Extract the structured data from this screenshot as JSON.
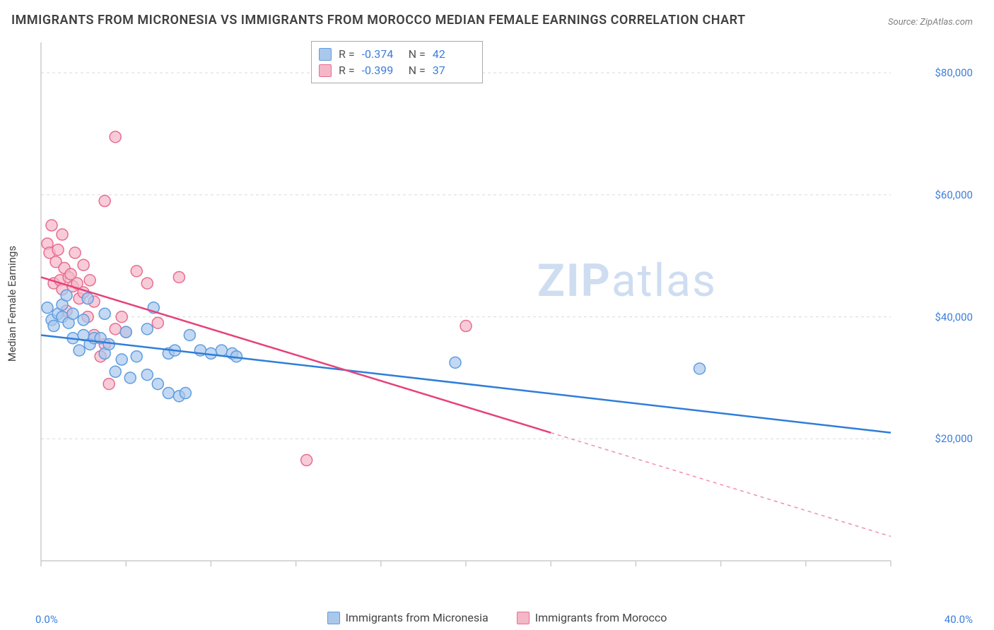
{
  "title": "IMMIGRANTS FROM MICRONESIA VS IMMIGRANTS FROM MOROCCO MEDIAN FEMALE EARNINGS CORRELATION CHART",
  "source": "Source: ZipAtlas.com",
  "yaxis_label": "Median Female Earnings",
  "watermark_a": "ZIP",
  "watermark_b": "atlas",
  "x_start": "0.0%",
  "x_end": "40.0%",
  "chart": {
    "type": "scatter-with-regression",
    "xlim": [
      0,
      40
    ],
    "ylim": [
      0,
      85000
    ],
    "yticks": [
      20000,
      40000,
      60000,
      80000
    ],
    "ytick_labels": [
      "$20,000",
      "$40,000",
      "$60,000",
      "$80,000"
    ],
    "xtick_positions": [
      0,
      4,
      8,
      12,
      16,
      20,
      24,
      28,
      32,
      36,
      40
    ],
    "grid_color": "#d9d9d9",
    "axis_color": "#cccccc",
    "background": "#ffffff",
    "marker_radius": 8,
    "marker_stroke_width": 1.5,
    "line_width": 2.5,
    "series": [
      {
        "key": "micronesia",
        "label": "Immigrants from Micronesia",
        "fill": "#a9c8ec",
        "stroke": "#5f9de0",
        "line_color": "#2f7ed8",
        "r": "-0.374",
        "n": "42",
        "regression": {
          "x1": 0,
          "y1": 37000,
          "x2": 40,
          "y2": 21000,
          "solid_to_x": 40
        },
        "points": [
          [
            0.3,
            41500
          ],
          [
            0.5,
            39500
          ],
          [
            0.6,
            38500
          ],
          [
            0.8,
            40500
          ],
          [
            1.0,
            42000
          ],
          [
            1.0,
            40000
          ],
          [
            1.2,
            43500
          ],
          [
            1.3,
            39000
          ],
          [
            1.5,
            36500
          ],
          [
            1.5,
            40500
          ],
          [
            1.8,
            34500
          ],
          [
            2.0,
            39500
          ],
          [
            2.0,
            37000
          ],
          [
            2.2,
            43000
          ],
          [
            2.3,
            35500
          ],
          [
            2.5,
            36500
          ],
          [
            2.8,
            36500
          ],
          [
            3.0,
            34000
          ],
          [
            3.0,
            40500
          ],
          [
            3.2,
            35500
          ],
          [
            3.5,
            31000
          ],
          [
            3.8,
            33000
          ],
          [
            4.0,
            37500
          ],
          [
            4.2,
            30000
          ],
          [
            4.5,
            33500
          ],
          [
            5.0,
            30500
          ],
          [
            5.0,
            38000
          ],
          [
            5.3,
            41500
          ],
          [
            5.5,
            29000
          ],
          [
            6.0,
            27500
          ],
          [
            6.0,
            34000
          ],
          [
            6.3,
            34500
          ],
          [
            6.5,
            27000
          ],
          [
            6.8,
            27500
          ],
          [
            7.0,
            37000
          ],
          [
            7.5,
            34500
          ],
          [
            8.0,
            34000
          ],
          [
            8.5,
            34500
          ],
          [
            9.0,
            34000
          ],
          [
            9.2,
            33500
          ],
          [
            19.5,
            32500
          ],
          [
            31.0,
            31500
          ]
        ]
      },
      {
        "key": "morocco",
        "label": "Immigrants from Morocco",
        "fill": "#f4b7c7",
        "stroke": "#e86d8f",
        "line_color": "#e6427a",
        "r": "-0.399",
        "n": "37",
        "regression": {
          "x1": 0,
          "y1": 46500,
          "x2": 40,
          "y2": 4000,
          "solid_to_x": 24
        },
        "points": [
          [
            0.3,
            52000
          ],
          [
            0.4,
            50500
          ],
          [
            0.5,
            55000
          ],
          [
            0.6,
            45500
          ],
          [
            0.7,
            49000
          ],
          [
            0.8,
            51000
          ],
          [
            0.9,
            46000
          ],
          [
            1.0,
            44500
          ],
          [
            1.0,
            53500
          ],
          [
            1.1,
            48000
          ],
          [
            1.2,
            41000
          ],
          [
            1.3,
            46500
          ],
          [
            1.4,
            47000
          ],
          [
            1.5,
            45000
          ],
          [
            1.6,
            50500
          ],
          [
            1.7,
            45500
          ],
          [
            1.8,
            43000
          ],
          [
            2.0,
            48500
          ],
          [
            2.0,
            44000
          ],
          [
            2.2,
            40000
          ],
          [
            2.3,
            46000
          ],
          [
            2.5,
            37000
          ],
          [
            2.5,
            42500
          ],
          [
            2.8,
            33500
          ],
          [
            3.0,
            59000
          ],
          [
            3.0,
            35500
          ],
          [
            3.2,
            29000
          ],
          [
            3.5,
            69500
          ],
          [
            3.5,
            38000
          ],
          [
            3.8,
            40000
          ],
          [
            4.0,
            37500
          ],
          [
            4.5,
            47500
          ],
          [
            5.0,
            45500
          ],
          [
            5.5,
            39000
          ],
          [
            6.5,
            46500
          ],
          [
            12.5,
            16500
          ],
          [
            20.0,
            38500
          ]
        ]
      }
    ]
  }
}
